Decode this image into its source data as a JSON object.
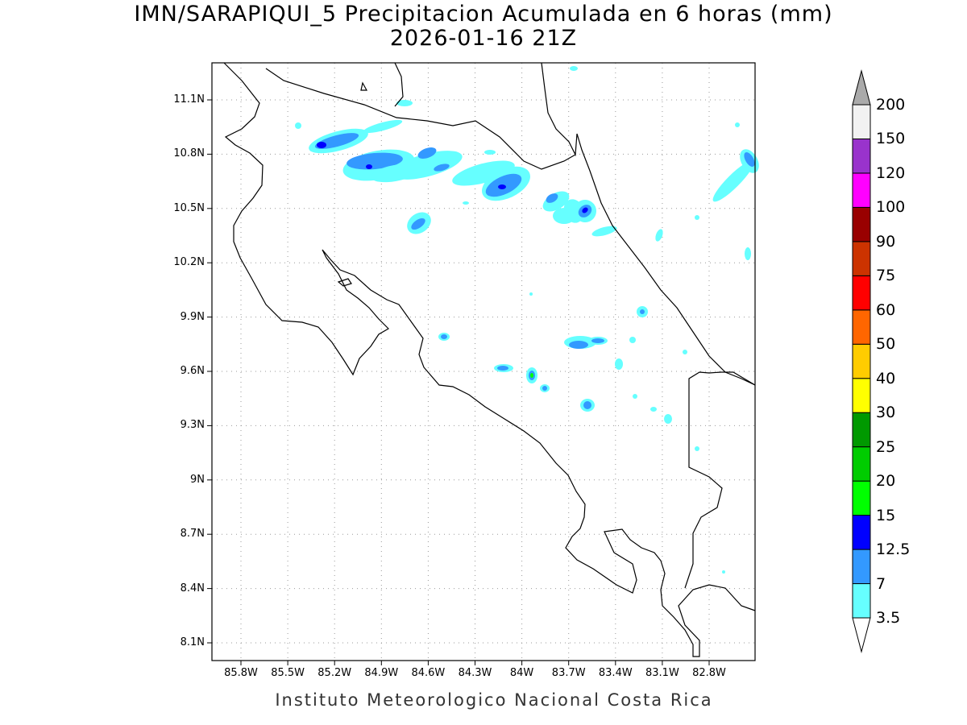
{
  "title": {
    "line1": "IMN/SARAPIQUI_5 Precipitacion Acumulada en 6 horas (mm)",
    "line2": "2026-01-16 21Z"
  },
  "footer": "Instituto Meteorologico Nacional Costa Rica",
  "map": {
    "lat_range": [
      8.0,
      11.3
    ],
    "lon_range": [
      -86.0,
      -82.5
    ],
    "lat_ticks": [
      "11.1N",
      "10.8N",
      "10.5N",
      "10.2N",
      "9.9N",
      "9.6N",
      "9.3N",
      "9N",
      "8.7N",
      "8.4N",
      "8.1N"
    ],
    "lon_ticks": [
      "85.8W",
      "85.5W",
      "85.2W",
      "84.9W",
      "84.6W",
      "84.3W",
      "84W",
      "83.7W",
      "83.4W",
      "83.1W",
      "82.8W"
    ]
  },
  "colorbar": {
    "labels": [
      "3.5",
      "7",
      "12.5",
      "15",
      "20",
      "25",
      "30",
      "40",
      "50",
      "60",
      "75",
      "90",
      "100",
      "120",
      "150",
      "200"
    ],
    "colors": [
      "#66ffff",
      "#3399ff",
      "#0000ff",
      "#00ff00",
      "#00cc00",
      "#009900",
      "#ffff00",
      "#ffcc00",
      "#ff6600",
      "#ff0000",
      "#cc3300",
      "#990000",
      "#ff00ff",
      "#9933cc",
      "#f2f2f2"
    ],
    "below_color": "#ffffff",
    "above_color": "#aaaaaa"
  }
}
